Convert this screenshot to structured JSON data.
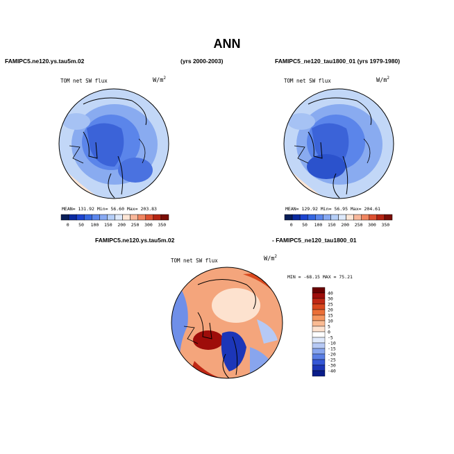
{
  "figure": {
    "title": "ANN",
    "left_case": "FAMIPC5.ne120.ys.tau5m.02",
    "left_years": "(yrs 2000-2003)",
    "right_case_full": "FAMIPC5_ne120_tau1800_01 (yrs 1979-1980)",
    "diff_case_a": "FAMIPC5.ne120.ys.tau5m.02",
    "diff_case_b": "- FAMIPC5_ne120_tau1800_01"
  },
  "panels": {
    "left": {
      "title": "TOM net SW flux",
      "units": "W/m",
      "units_sup": "2",
      "stats": "MEAN=  131.92   Min=   56.60   Max=  203.83"
    },
    "right": {
      "title": "TOM net SW flux",
      "units": "W/m",
      "units_sup": "2",
      "stats": "MEAN=  129.92   Min=   56.95   Max=  204.61"
    },
    "diff": {
      "title": "TOM net SW flux",
      "units": "W/m",
      "units_sup": "2",
      "stats": "MIN = -68.15  MAX =  75.21"
    }
  },
  "colors": {
    "abs_scale": [
      "#081d58",
      "#0a2aa0",
      "#1c44d0",
      "#3566e0",
      "#5b86ec",
      "#87a9f2",
      "#b6cff8",
      "#dde9fb",
      "#fde6d6",
      "#f8b79a",
      "#f08560",
      "#dc5030",
      "#b52412",
      "#7a0d06"
    ],
    "diff_scale": [
      "#6a0000",
      "#9e0d0a",
      "#c02815",
      "#d9481e",
      "#ea6f38",
      "#f59660",
      "#fabb93",
      "#fde2cf",
      "#ffffff",
      "#dfe9fb",
      "#b6c9f5",
      "#88a5ee",
      "#5b7fe5",
      "#3557d6",
      "#1c36b8",
      "#0a1d8a"
    ]
  },
  "chart_data": [
    {
      "type": "heatmap",
      "title": "TOM net SW flux",
      "case": "FAMIPC5.ne120.ys.tau5m.02 (yrs 2000-2003)",
      "units": "W/m2",
      "colorbar_ticks": [
        "0",
        "50",
        "100",
        "150",
        "200",
        "250",
        "300",
        "350"
      ],
      "mean": 131.92,
      "min": 56.6,
      "max": 203.83
    },
    {
      "type": "heatmap",
      "title": "TOM net SW flux",
      "case": "FAMIPC5_ne120_tau1800_01 (yrs 1979-1980)",
      "units": "W/m2",
      "colorbar_ticks": [
        "0",
        "50",
        "100",
        "150",
        "200",
        "250",
        "300",
        "350"
      ],
      "mean": 129.92,
      "min": 56.95,
      "max": 204.61
    },
    {
      "type": "heatmap",
      "title": "TOM net SW flux",
      "case": "FAMIPC5.ne120.ys.tau5m.02 - FAMIPC5_ne120_tau1800_01",
      "units": "W/m2",
      "colorbar_ticks": [
        "40",
        "30",
        "25",
        "20",
        "15",
        "10",
        "5",
        "0",
        "-5",
        "-10",
        "-15",
        "-20",
        "-25",
        "-30",
        "-40"
      ],
      "min": -68.15,
      "max": 75.21
    }
  ]
}
